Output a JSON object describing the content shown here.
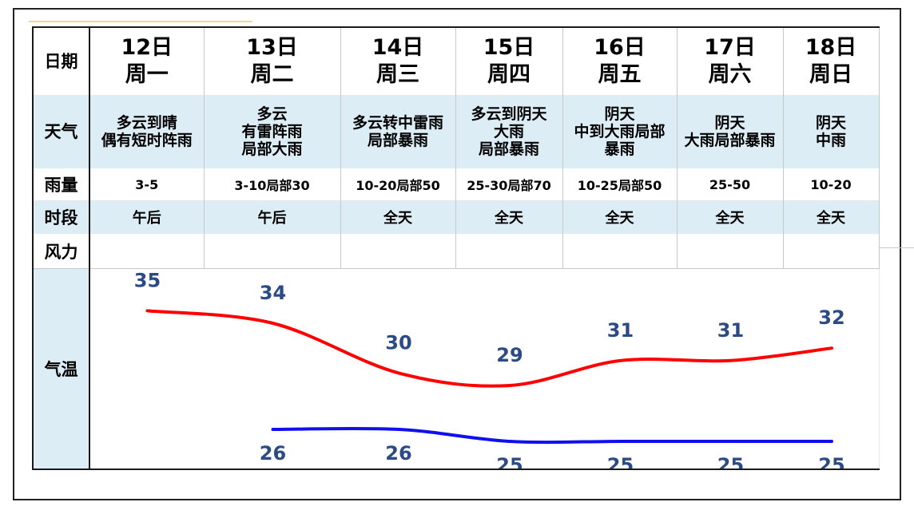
{
  "table": {
    "row_labels": {
      "date": "日期",
      "weather": "天气",
      "rain": "雨量",
      "period": "时段",
      "wind": "风力",
      "temp": "气温"
    },
    "days": [
      {
        "date": "12日",
        "weekday": "周一",
        "weather": "多云到晴\n偶有短时阵雨",
        "rain": "3-5",
        "period": "午后",
        "wind": ""
      },
      {
        "date": "13日",
        "weekday": "周二",
        "weather": "多云\n有雷阵雨\n局部大雨",
        "rain": "3-10局部30",
        "period": "午后",
        "wind": ""
      },
      {
        "date": "14日",
        "weekday": "周三",
        "weather": "多云转中雷雨\n局部暴雨",
        "rain": "10-20局部50",
        "period": "全天",
        "wind": ""
      },
      {
        "date": "15日",
        "weekday": "周四",
        "weather": "多云到阴天\n大雨\n局部暴雨",
        "rain": "25-30局部70",
        "period": "全天",
        "wind": ""
      },
      {
        "date": "16日",
        "weekday": "周五",
        "weather": "阴天\n中到大雨局部\n暴雨",
        "rain": "10-25局部50",
        "period": "全天",
        "wind": ""
      },
      {
        "date": "17日",
        "weekday": "周六",
        "weather": "阴天\n大雨局部暴雨",
        "rain": "25-50",
        "period": "全天",
        "wind": ""
      },
      {
        "date": "18日",
        "weekday": "周日",
        "weather": "阴天\n中雨",
        "rain": "10-20",
        "period": "全天",
        "wind": ""
      }
    ]
  },
  "colors": {
    "high": "#ff0000",
    "low": "#1010ee",
    "labels": "#2b4a86",
    "row_shade": "#dcedf5"
  },
  "chart_data": {
    "type": "line",
    "categories": [
      "12日",
      "13日",
      "14日",
      "15日",
      "16日",
      "17日",
      "18日"
    ],
    "series": [
      {
        "values": [
          35,
          34,
          30,
          29,
          31,
          31,
          32
        ]
      },
      {
        "values": [
          null,
          26,
          26,
          25,
          25,
          25,
          25
        ]
      }
    ],
    "legend": "none",
    "grid": false
  }
}
